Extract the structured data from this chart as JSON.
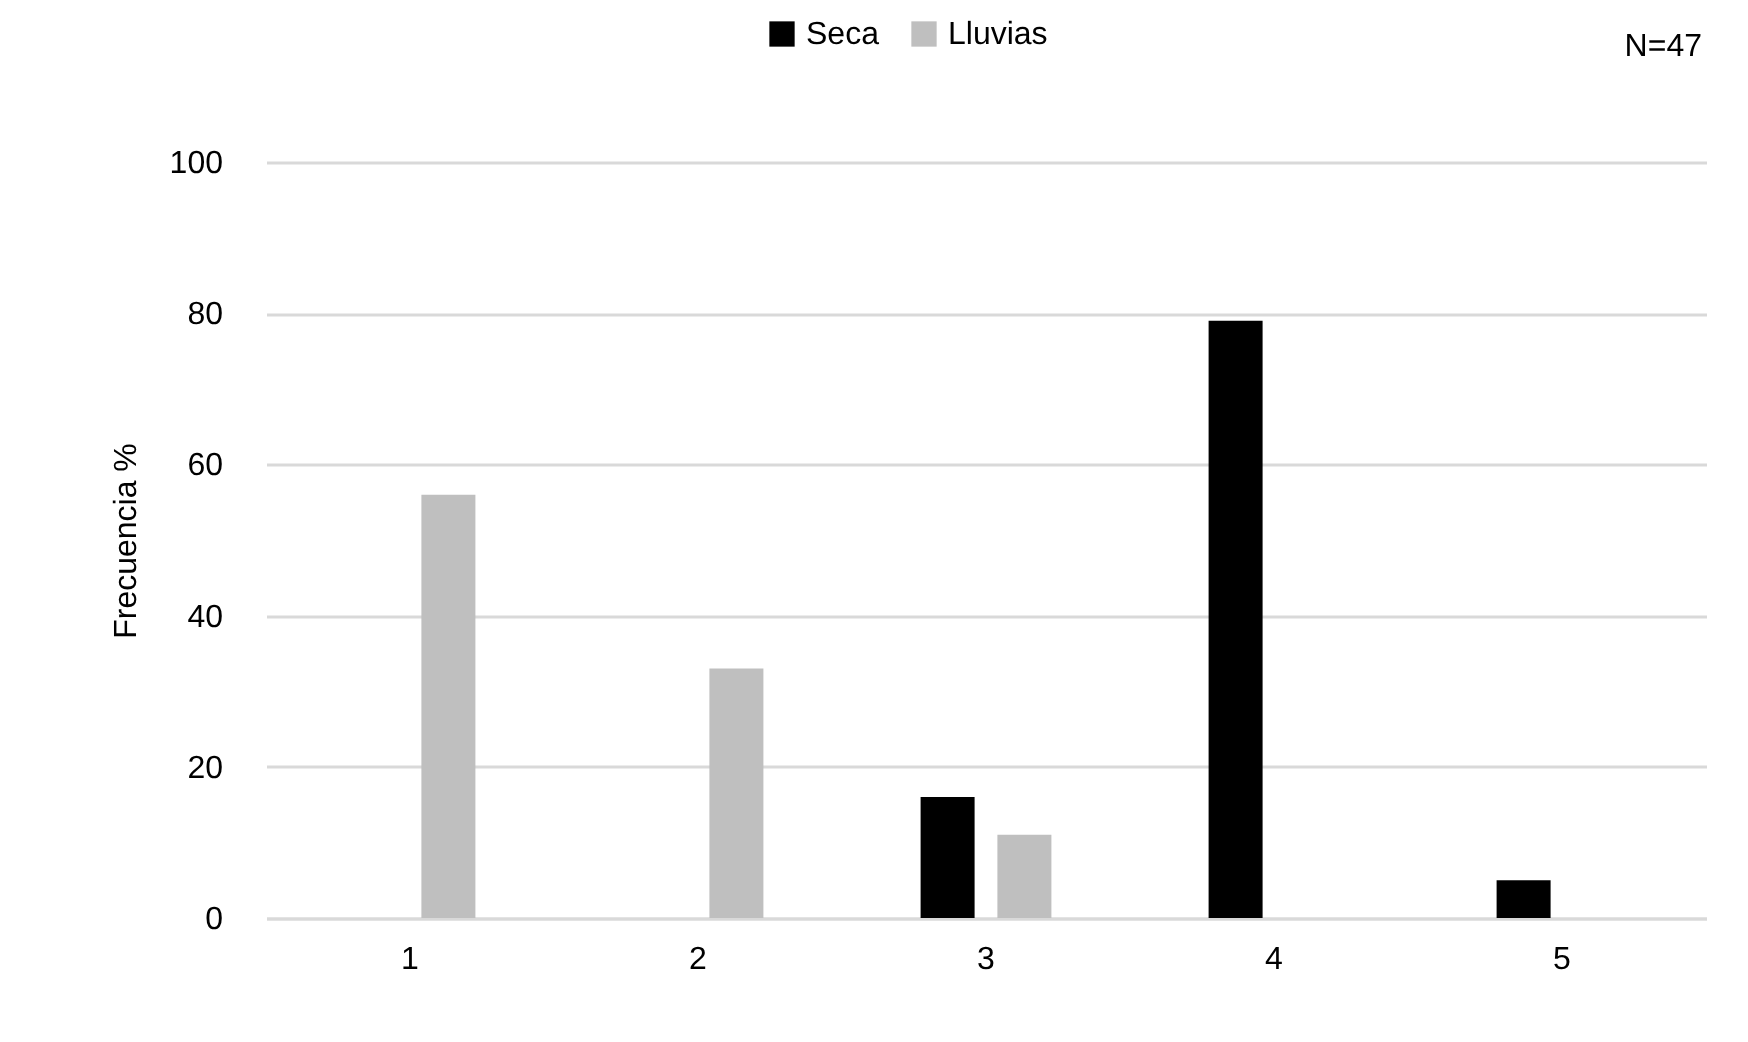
{
  "chart_data": {
    "type": "bar",
    "ylabel": "Frecuencia %",
    "categories": [
      "1",
      "2",
      "3",
      "4",
      "5"
    ],
    "series": [
      {
        "name": "Seca",
        "color": "#000000",
        "values": [
          0,
          0,
          16,
          79,
          5
        ]
      },
      {
        "name": "Lluvias",
        "color": "#bfbfbf",
        "values": [
          56,
          33,
          11,
          0,
          0
        ]
      }
    ],
    "ylim": [
      0,
      100
    ],
    "yticks": [
      0,
      20,
      40,
      60,
      80,
      100
    ],
    "grid": "y",
    "legend": "top",
    "annotations": [
      "N=47"
    ]
  }
}
